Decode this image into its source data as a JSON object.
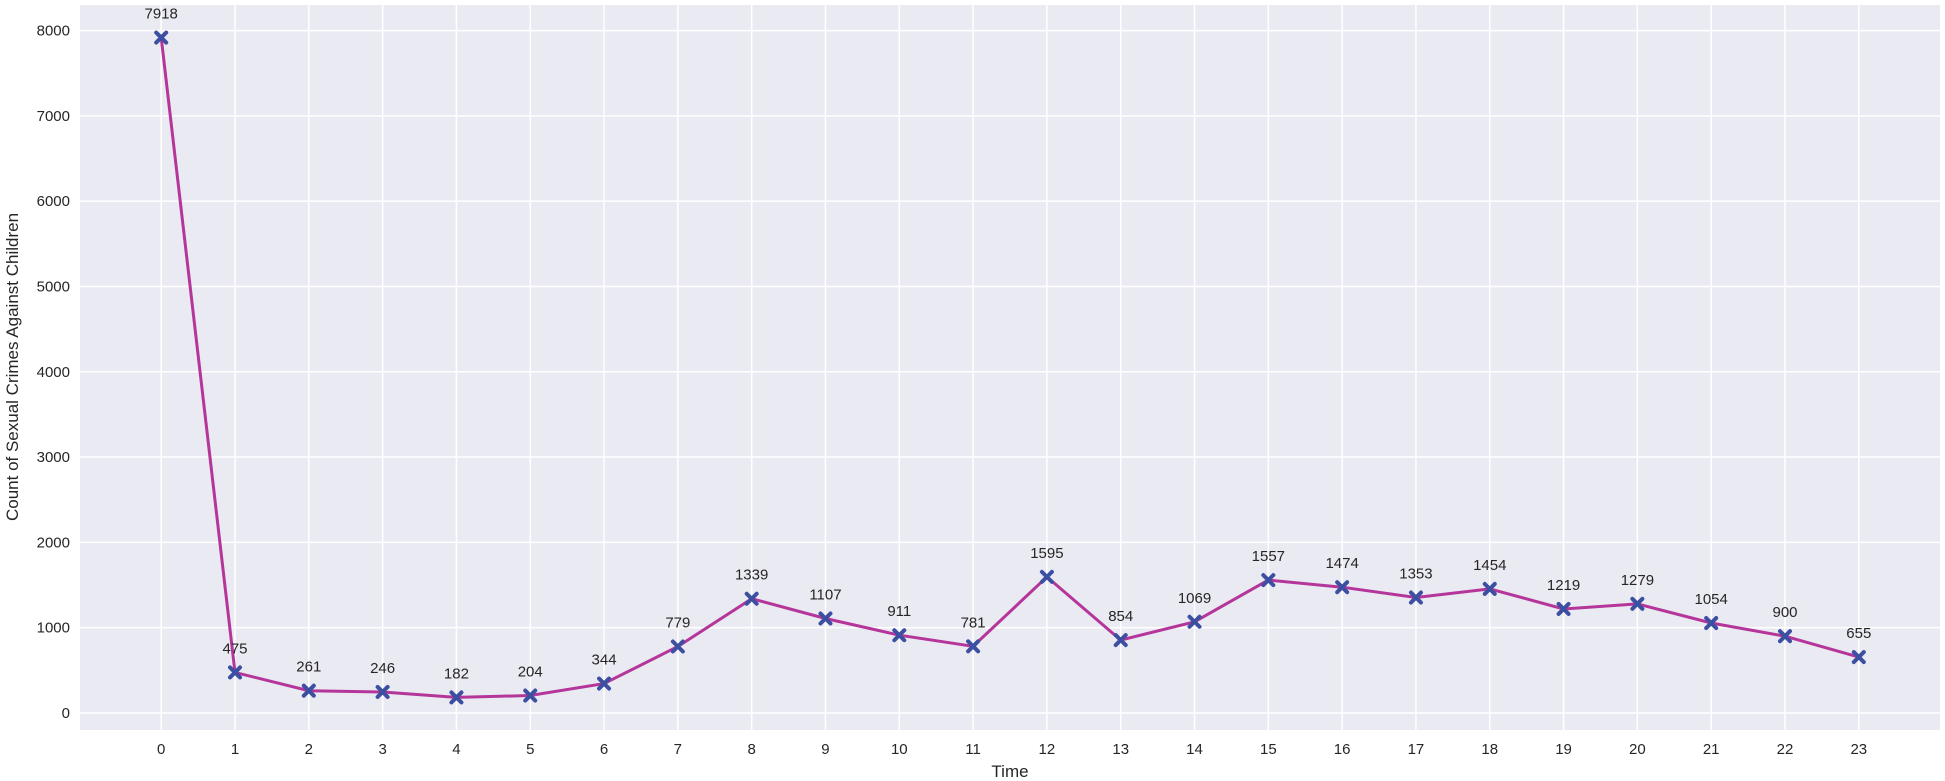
{
  "chart_data": {
    "type": "line",
    "title": "",
    "xlabel": "Time",
    "ylabel": "Count of Sexual Crimes Against Children",
    "x": [
      0,
      1,
      2,
      3,
      4,
      5,
      6,
      7,
      8,
      9,
      10,
      11,
      12,
      13,
      14,
      15,
      16,
      17,
      18,
      19,
      20,
      21,
      22,
      23
    ],
    "series": [
      {
        "values": [
          7918,
          475,
          261,
          246,
          182,
          204,
          344,
          779,
          1339,
          1107,
          911,
          781,
          1595,
          854,
          1069,
          1557,
          1474,
          1353,
          1454,
          1219,
          1279,
          1054,
          900,
          655
        ]
      }
    ],
    "xlim": [
      -1.1,
      24.1
    ],
    "ylim": [
      -200,
      8300
    ],
    "yticks": [
      0,
      1000,
      2000,
      3000,
      4000,
      5000,
      6000,
      7000,
      8000
    ],
    "grid": true,
    "legend": "none",
    "colors": {
      "background": "#eaeaf2",
      "grid": "#ffffff",
      "line": "#b5369a",
      "marker": "#3c4fa0",
      "text": "#262626"
    }
  }
}
